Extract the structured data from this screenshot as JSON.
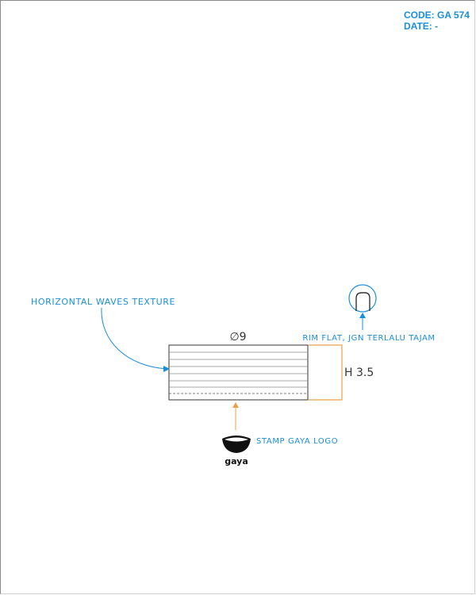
{
  "header": {
    "code": "CODE: GA 574",
    "date": "DATE: -"
  },
  "drawing": {
    "diameter": "∅9",
    "height": "H 3.5",
    "annotations": {
      "texture": "HORIZONTAL WAVES TEXTURE",
      "rim": "RIM FLAT, JGN TERLALU TAJAM",
      "stamp": "STAMP GAYA LOGO"
    },
    "logo_text": "gaya"
  },
  "colors": {
    "annotation": "#1a8fd8",
    "dimension": "#e8a04a",
    "outline": "#333333"
  }
}
